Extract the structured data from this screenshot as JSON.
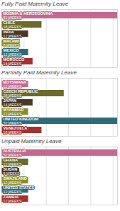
{
  "chart_data": [
    {
      "type": "bar",
      "orientation": "horizontal",
      "title": "Fully Paid Maternity Leave",
      "categories": [
        "BOSNIA & HERZEGOVINA",
        "CHILE",
        "INDIA",
        "MALAWI",
        "MEXICO",
        "MOROCCO"
      ],
      "values": [
        52,
        18,
        12,
        8,
        12,
        14
      ],
      "value_labels": [
        "52 WEEKS",
        "18 WEEKS",
        "12 WEEKS",
        "8 WEEKS",
        "12 WEEKS",
        "14 WEEKS"
      ],
      "colors": [
        "#c4688f",
        "#6b6b2a",
        "#4a3728",
        "#8b8b2a",
        "#2e6b7a",
        "#a63030"
      ],
      "data_labels": true,
      "xlim": [
        0,
        52
      ],
      "xticks": [
        0,
        10,
        20,
        30,
        40,
        50
      ],
      "grid": true,
      "tick_labels": false
    },
    {
      "type": "bar",
      "orientation": "horizontal",
      "title": "Partially Paid Maternity Leave",
      "categories": [
        "BOTSWANA",
        "CZECH REPUBLIC",
        "JAPAN",
        "MYANMAR",
        "UNITED KINGDOM",
        "VENEZUELA"
      ],
      "values": [
        12,
        28,
        14,
        12,
        52,
        18
      ],
      "value_labels": [
        "12 WEEKS",
        "28 WEEKS",
        "14 WEEKS",
        "12 WEEKS",
        "52 WEEKS",
        "18 WEEKS"
      ],
      "colors": [
        "#c4688f",
        "#6b6b2a",
        "#4a3728",
        "#8b8b2a",
        "#2e6b7a",
        "#a63030"
      ],
      "data_labels": true,
      "xlim": [
        0,
        52
      ],
      "xticks": [
        0,
        10,
        20,
        30,
        40,
        50
      ],
      "grid": true,
      "tick_labels": false
    },
    {
      "type": "bar",
      "orientation": "horizontal",
      "title": "Unpaid Maternity Leave",
      "categories": [
        "AUSTRALIA",
        "GHANA",
        "SUDAN",
        "SWAZILAND",
        "UNITED STATES",
        "ZAMBIA"
      ],
      "values": [
        52,
        12,
        8,
        12,
        12,
        12
      ],
      "value_labels": [
        "52 WEEKS",
        "12 WEEKS",
        "8 WEEKS",
        "12 WEEKS",
        "12 WEEKS",
        "12 WEEKS"
      ],
      "colors": [
        "#c4688f",
        "#6b6b2a",
        "#4a3728",
        "#8b8b2a",
        "#2e6b7a",
        "#a63030"
      ],
      "data_labels": true,
      "xlim": [
        0,
        52
      ],
      "xticks": [
        0,
        10,
        20,
        30,
        40,
        50
      ],
      "grid": true,
      "tick_labels": false
    }
  ]
}
